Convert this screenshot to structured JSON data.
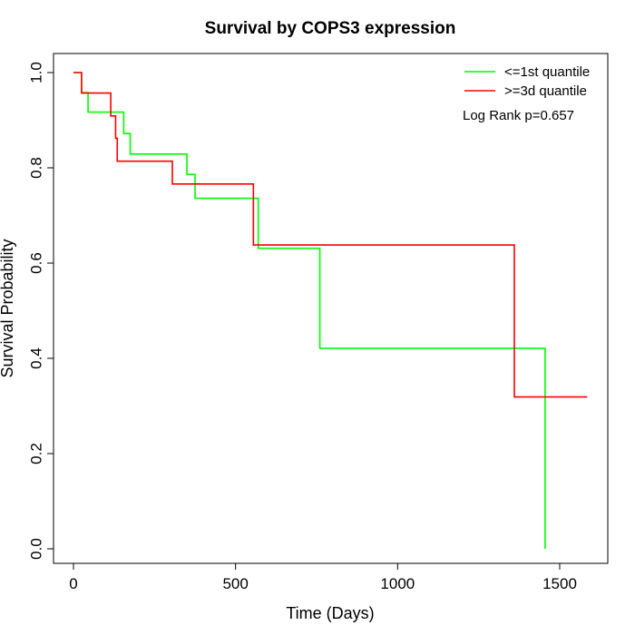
{
  "chart_data": {
    "type": "line",
    "title": "Survival by COPS3 expression",
    "xlabel": "Time (Days)",
    "ylabel": "Survival Probability",
    "xlim": [
      0,
      1600
    ],
    "ylim": [
      0,
      1
    ],
    "x_ticks": [
      0,
      500,
      1000,
      1500
    ],
    "y_ticks": [
      0.0,
      0.2,
      0.4,
      0.6,
      0.8,
      1.0
    ],
    "x_tick_labels": [
      "0",
      "500",
      "1000",
      "1500"
    ],
    "y_tick_labels": [
      "0.0",
      "0.2",
      "0.4",
      "0.6",
      "0.8",
      "1.0"
    ],
    "grid": false,
    "legend_position": "top-right",
    "annotation": "Log Rank p=0.657",
    "series": [
      {
        "name": "<=1st quantile",
        "color": "#00ff00",
        "steps": [
          [
            0,
            1.0
          ],
          [
            25,
            0.958
          ],
          [
            45,
            0.917
          ],
          [
            155,
            0.872
          ],
          [
            175,
            0.829
          ],
          [
            350,
            0.786
          ],
          [
            375,
            0.736
          ],
          [
            570,
            0.631
          ],
          [
            760,
            0.421
          ],
          [
            1455,
            0.0
          ]
        ],
        "end_x": 1455
      },
      {
        "name": ">=3d quantile",
        "color": "#ff0000",
        "steps": [
          [
            0,
            1.0
          ],
          [
            25,
            0.957
          ],
          [
            115,
            0.909
          ],
          [
            130,
            0.862
          ],
          [
            135,
            0.814
          ],
          [
            305,
            0.766
          ],
          [
            555,
            0.638
          ],
          [
            1360,
            0.319
          ]
        ],
        "end_x": 1585
      }
    ]
  }
}
